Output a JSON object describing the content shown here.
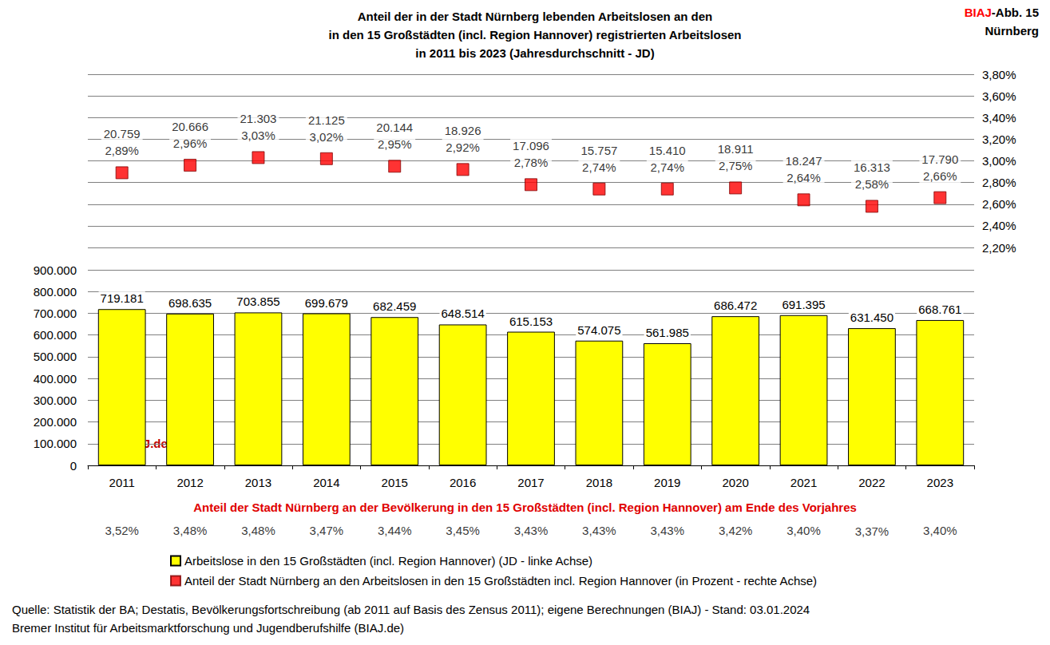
{
  "chart_data": {
    "type": "bar",
    "title": "Anteil der in der Stadt Nürnberg lebenden Arbeitslosen an den\nin den 15 Großstädten (incl. Region Hannover) registrierten Arbeitslosen\nin 2011 bis 2023 (Jahresdurchschnitt - JD)",
    "figure_label": "BIAJ-Abb. 15",
    "figure_city": "Nürnberg",
    "watermark": "BIAJ.de",
    "source": [
      "Quelle: Statistik der BA; Destatis, Bevölkerungsfortschreibung (ab 2011 auf Basis des Zensus 2011); eigene Berechnungen (BIAJ) - Stand: 03.01.2024",
      "Bremer Institut für Arbeitsmarktforschung und Jugendberufshilfe (BIAJ.de)"
    ],
    "categories": [
      "2011",
      "2012",
      "2013",
      "2014",
      "2015",
      "2016",
      "2017",
      "2018",
      "2019",
      "2020",
      "2021",
      "2022",
      "2023"
    ],
    "series": [
      {
        "name": "Arbeitslose in den 15 Großstädten (incl. Region Hannover) (JD - linke Achse)",
        "type": "bar",
        "color": "#FFFF00",
        "values": [
          719181,
          698635,
          703855,
          699679,
          682459,
          648514,
          615153,
          574075,
          561985,
          686472,
          691395,
          631450,
          668761
        ],
        "value_labels": [
          "719.181",
          "698.635",
          "703.855",
          "699.679",
          "682.459",
          "648.514",
          "615.153",
          "574.075",
          "561.985",
          "686.472",
          "691.395",
          "631.450",
          "668.761"
        ]
      },
      {
        "name": "Anteil der Stadt Nürnberg an den Arbeitslosen in den 15 Großstädten incl. Region Hannover (in Prozent - rechte Achse)",
        "type": "scatter",
        "axis": "y2",
        "color": "#FF0000",
        "marker": "square",
        "values": [
          2.89,
          2.96,
          3.03,
          3.02,
          2.95,
          2.92,
          2.78,
          2.74,
          2.74,
          2.75,
          2.64,
          2.58,
          2.66
        ],
        "value_labels": [
          "2,89%",
          "2,96%",
          "3,03%",
          "3,02%",
          "2,95%",
          "2,92%",
          "2,78%",
          "2,74%",
          "2,74%",
          "2,75%",
          "2,64%",
          "2,58%",
          "2,66%"
        ],
        "counts": [
          20759,
          20666,
          21303,
          21125,
          20144,
          18926,
          17096,
          15757,
          15410,
          18911,
          18247,
          16313,
          17790
        ],
        "count_labels": [
          "20.759",
          "20.666",
          "21.303",
          "21.125",
          "20.144",
          "18.926",
          "17.096",
          "15.757",
          "15.410",
          "18.911",
          "18.247",
          "16.313",
          "17.790"
        ]
      }
    ],
    "population_share": {
      "title": "Anteil der Stadt Nürnberg an der Bevölkerung in den 15 Großstädten (incl. Region Hannover) am Ende des Vorjahres",
      "values": [
        3.52,
        3.48,
        3.48,
        3.47,
        3.44,
        3.45,
        3.43,
        3.43,
        3.43,
        3.42,
        3.4,
        3.37,
        3.4
      ],
      "value_labels": [
        "3,52%",
        "3,48%",
        "3,48%",
        "3,47%",
        "3,44%",
        "3,45%",
        "3,43%",
        "3,43%",
        "3,43%",
        "3,42%",
        "3,40%",
        "3,37%",
        "3,40%"
      ]
    },
    "ylim": [
      0,
      900000
    ],
    "yticks": [
      0,
      {
        "value": 100000,
        "label": "100.000"
      },
      {
        "value": 200000,
        "label": "200.000"
      },
      {
        "value": 300000,
        "label": "300.000"
      },
      {
        "value": 400000,
        "label": "400.000"
      },
      {
        "value": 500000,
        "label": "500.000"
      },
      {
        "value": 600000,
        "label": "600.000"
      },
      {
        "value": 700000,
        "label": "700.000"
      },
      {
        "value": 800000,
        "label": "800.000"
      },
      {
        "value": 900000,
        "label": "900.000"
      }
    ],
    "y2lim": [
      2.2,
      3.8
    ],
    "y2ticks": [
      {
        "value": 2.2,
        "label": "2,20%"
      },
      {
        "value": 2.4,
        "label": "2,40%"
      },
      {
        "value": 2.6,
        "label": "2,60%"
      },
      {
        "value": 2.8,
        "label": "2,80%"
      },
      {
        "value": 3.0,
        "label": "3,00%"
      },
      {
        "value": 3.2,
        "label": "3,20%"
      },
      {
        "value": 3.4,
        "label": "3,40%"
      },
      {
        "value": 3.6,
        "label": "3,60%"
      },
      {
        "value": 3.8,
        "label": "3,80%"
      }
    ],
    "grid": true,
    "legend": "bottom",
    "data_labels": true
  }
}
